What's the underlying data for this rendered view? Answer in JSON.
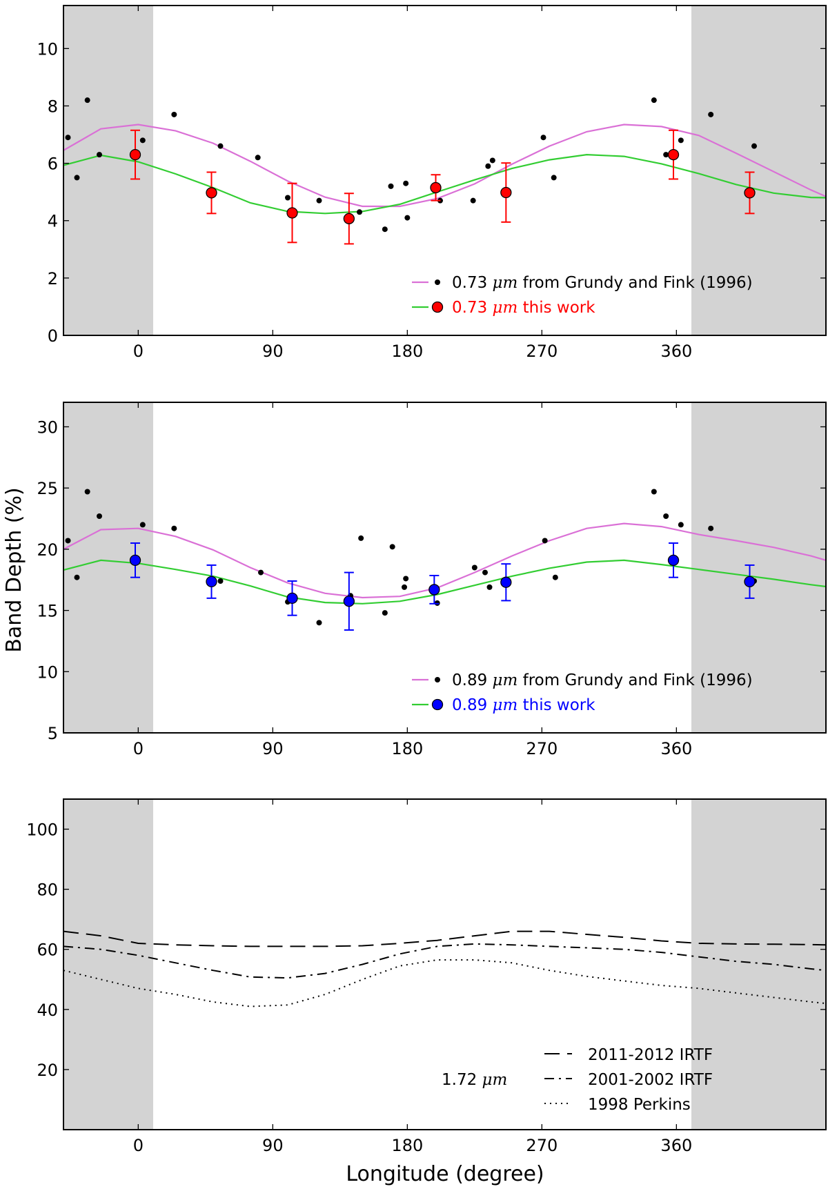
{
  "figure": {
    "ylabel": "Band Depth (%)",
    "xlabel": "Longitude (degree)"
  },
  "chart_data": [
    {
      "type": "scatter",
      "panel": "top",
      "xlim": [
        -50,
        460
      ],
      "ylim": [
        0,
        11.5
      ],
      "xticks": [
        0,
        90,
        180,
        270,
        360
      ],
      "yticks": [
        0,
        2,
        4,
        6,
        8,
        10
      ],
      "shaded_x_ranges": [
        [
          -50,
          10
        ],
        [
          370,
          460
        ]
      ],
      "legend_placement": "lower-right",
      "legend": [
        {
          "prefix": "0.73 ",
          "unit": "μm",
          "suffix": " from Grundy and Fink (1996)",
          "color": "#000000",
          "line_color": "#da70d6",
          "marker": "small-black"
        },
        {
          "prefix": "0.73 ",
          "unit": "μm",
          "suffix": " this work",
          "color": "#ff0000",
          "line_color": "#32cd32",
          "marker": "circle-red"
        }
      ],
      "series": [
        {
          "name": "0.73 μm from Grundy and Fink (1996)",
          "color": "#000000",
          "x": [
            -47,
            -41,
            -34,
            -26,
            3,
            24,
            55,
            80,
            100,
            121,
            142,
            148,
            165,
            169,
            179,
            180,
            202,
            224,
            234,
            237,
            271,
            278,
            345,
            353,
            363,
            383,
            412
          ],
          "y": [
            6.9,
            5.5,
            8.2,
            6.3,
            6.8,
            7.7,
            6.6,
            6.2,
            4.8,
            4.7,
            4.0,
            4.3,
            3.7,
            5.2,
            5.3,
            4.1,
            4.7,
            4.7,
            5.9,
            6.1,
            6.9,
            5.5,
            8.2,
            6.3,
            6.8,
            7.7,
            6.6
          ]
        },
        {
          "name": "0.73 μm this work",
          "color": "#ff0000",
          "x": [
            -2,
            49,
            103,
            141,
            199,
            246,
            358,
            409
          ],
          "y": [
            6.3,
            4.97,
            4.27,
            4.07,
            5.15,
            4.98,
            6.3,
            4.97
          ],
          "err": [
            0.85,
            0.72,
            1.03,
            0.88,
            0.45,
            1.03,
            0.85,
            0.72
          ]
        },
        {
          "name": "magenta fit",
          "color": "#da70d6",
          "kind": "line",
          "x": [
            -50,
            -25,
            0,
            25,
            50,
            75,
            100,
            125,
            150,
            175,
            200,
            225,
            250,
            275,
            300,
            325,
            350,
            375,
            400,
            425,
            450,
            460
          ],
          "y": [
            6.45,
            7.2,
            7.35,
            7.13,
            6.7,
            6.07,
            5.38,
            4.82,
            4.5,
            4.5,
            4.77,
            5.28,
            5.97,
            6.6,
            7.1,
            7.35,
            7.28,
            6.97,
            6.35,
            5.71,
            5.07,
            4.84
          ]
        },
        {
          "name": "green fit",
          "color": "#32cd32",
          "kind": "line",
          "x": [
            -50,
            -25,
            0,
            25,
            50,
            75,
            100,
            125,
            150,
            175,
            200,
            225,
            250,
            275,
            300,
            325,
            350,
            375,
            400,
            425,
            450,
            460
          ],
          "y": [
            5.93,
            6.28,
            6.05,
            5.63,
            5.15,
            4.62,
            4.32,
            4.25,
            4.32,
            4.57,
            5.0,
            5.42,
            5.82,
            6.12,
            6.3,
            6.24,
            5.98,
            5.64,
            5.26,
            4.96,
            4.81,
            4.8
          ]
        }
      ]
    },
    {
      "type": "scatter",
      "panel": "middle",
      "xlim": [
        -50,
        460
      ],
      "ylim": [
        5,
        32
      ],
      "xticks": [
        0,
        90,
        180,
        270,
        360
      ],
      "yticks": [
        5,
        10,
        15,
        20,
        25,
        30
      ],
      "shaded_x_ranges": [
        [
          -50,
          10
        ],
        [
          370,
          460
        ]
      ],
      "legend_placement": "lower-right",
      "legend": [
        {
          "prefix": "0.89 ",
          "unit": "μm",
          "suffix": " from Grundy and Fink (1996)",
          "color": "#000000",
          "line_color": "#da70d6",
          "marker": "small-black"
        },
        {
          "prefix": "0.89 ",
          "unit": "μm",
          "suffix": " this work",
          "color": "#0000ff",
          "line_color": "#32cd32",
          "marker": "circle-blue"
        }
      ],
      "series": [
        {
          "name": "0.89 μm from Grundy and Fink (1996)",
          "color": "#000000",
          "x": [
            -47,
            -41,
            -34,
            -26,
            3,
            24,
            55,
            82,
            100,
            121,
            142,
            149,
            165,
            170,
            178,
            179,
            200,
            225,
            232,
            235,
            272,
            279,
            345,
            353,
            363,
            383,
            412
          ],
          "y": [
            20.7,
            17.7,
            24.7,
            22.7,
            22.0,
            21.7,
            17.4,
            18.1,
            15.7,
            14.0,
            16.2,
            20.9,
            14.8,
            20.2,
            16.9,
            17.6,
            15.6,
            18.5,
            18.1,
            16.9,
            20.7,
            17.7,
            24.7,
            22.7,
            22.0,
            21.7,
            17.4
          ]
        },
        {
          "name": "0.89 μm this work",
          "color": "#0000ff",
          "x": [
            -2,
            49,
            103,
            141,
            198,
            246,
            358,
            409
          ],
          "y": [
            19.1,
            17.35,
            16.0,
            15.75,
            16.7,
            17.3,
            19.1,
            17.35
          ],
          "err": [
            1.4,
            1.35,
            1.4,
            2.35,
            1.15,
            1.5,
            1.4,
            1.35
          ]
        },
        {
          "name": "magenta fit",
          "color": "#da70d6",
          "kind": "line",
          "x": [
            -50,
            -25,
            0,
            25,
            50,
            75,
            100,
            125,
            150,
            175,
            200,
            225,
            250,
            275,
            300,
            325,
            350,
            375,
            400,
            425,
            450,
            460
          ],
          "y": [
            20.0,
            21.6,
            21.7,
            21.05,
            19.95,
            18.5,
            17.25,
            16.4,
            16.05,
            16.15,
            16.85,
            18.1,
            19.45,
            20.7,
            21.7,
            22.1,
            21.85,
            21.2,
            20.7,
            20.15,
            19.45,
            19.1
          ]
        },
        {
          "name": "green fit",
          "color": "#32cd32",
          "kind": "line",
          "x": [
            -50,
            -25,
            0,
            25,
            50,
            75,
            100,
            125,
            150,
            175,
            200,
            225,
            250,
            275,
            300,
            325,
            350,
            375,
            400,
            425,
            450,
            460
          ],
          "y": [
            18.3,
            19.1,
            18.85,
            18.35,
            17.8,
            17.0,
            16.1,
            15.65,
            15.55,
            15.75,
            16.3,
            17.05,
            17.8,
            18.45,
            18.95,
            19.1,
            18.75,
            18.35,
            17.95,
            17.55,
            17.1,
            16.95
          ]
        }
      ]
    },
    {
      "type": "line",
      "panel": "bottom",
      "xlim": [
        -50,
        460
      ],
      "ylim": [
        0,
        110
      ],
      "xticks": [
        0,
        90,
        180,
        270,
        360
      ],
      "yticks": [
        20,
        40,
        60,
        80,
        100
      ],
      "shaded_x_ranges": [
        [
          -50,
          10
        ],
        [
          370,
          460
        ]
      ],
      "annotation": {
        "prefix": "1.72 ",
        "unit": "μm"
      },
      "legend_placement": "lower-right",
      "legend": [
        {
          "label": "2011-2012 IRTF",
          "style": "dashed"
        },
        {
          "label": "2001-2002 IRTF",
          "style": "dashdot"
        },
        {
          "label": "1998 Perkins",
          "style": "dotted"
        }
      ],
      "series": [
        {
          "name": "2011-2012 IRTF",
          "style": "dashed",
          "x": [
            -50,
            -25,
            0,
            25,
            50,
            75,
            100,
            125,
            150,
            175,
            200,
            225,
            250,
            275,
            300,
            325,
            350,
            375,
            400,
            425,
            450,
            460
          ],
          "y": [
            66,
            64.5,
            62,
            61.5,
            61.2,
            61,
            61,
            61,
            61.2,
            62,
            63,
            64.5,
            66,
            66,
            65,
            64,
            62.8,
            62,
            61.8,
            61.7,
            61.6,
            61.5
          ]
        },
        {
          "name": "2001-2002 IRTF",
          "style": "dashdot",
          "x": [
            -50,
            -25,
            0,
            25,
            50,
            75,
            100,
            125,
            150,
            175,
            200,
            225,
            250,
            275,
            300,
            325,
            350,
            375,
            400,
            425,
            450,
            460
          ],
          "y": [
            61,
            60,
            58,
            55.5,
            53,
            50.8,
            50.5,
            52,
            55,
            58.5,
            61,
            61.8,
            61.5,
            61,
            60.5,
            60,
            59,
            57.5,
            56,
            55,
            53.5,
            53
          ]
        },
        {
          "name": "1998 Perkins",
          "style": "dotted",
          "x": [
            -50,
            -25,
            0,
            25,
            50,
            75,
            100,
            125,
            150,
            175,
            200,
            225,
            250,
            275,
            300,
            325,
            350,
            375,
            400,
            425,
            450,
            460
          ],
          "y": [
            53,
            50,
            47,
            45,
            42.5,
            41,
            41.5,
            45,
            50,
            54.5,
            56.5,
            56.5,
            55.5,
            53,
            51,
            49.5,
            48,
            47,
            45.5,
            44,
            42.5,
            42
          ]
        }
      ]
    }
  ]
}
